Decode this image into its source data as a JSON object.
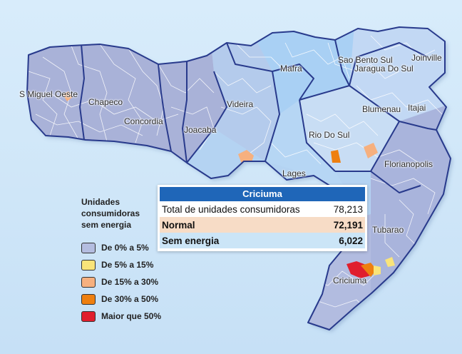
{
  "legend": {
    "title_lines": [
      "Unidades",
      "consumidoras",
      "sem energia"
    ],
    "items": [
      {
        "label": "De 0% a 5%",
        "color": "#b4bde0"
      },
      {
        "label": "De 5% a 15%",
        "color": "#f9e47a"
      },
      {
        "label": "De 15% a 30%",
        "color": "#f6b07f"
      },
      {
        "label": "De 30% a 50%",
        "color": "#ee7f10"
      },
      {
        "label": "Maior que 50%",
        "color": "#e01e2d"
      }
    ]
  },
  "cities": [
    "S Miguel Oeste",
    "Chapeco",
    "Concordia",
    "Joacaba",
    "Videira",
    "Mafra",
    "Sao Bento Sul",
    "Jaragua Do Sul",
    "Joinville",
    "Blumenau",
    "Itajai",
    "Rio Do Sul",
    "Lages",
    "Florianopolis",
    "Tubarao",
    "Criciuma"
  ],
  "popup": {
    "title": "Criciuma",
    "rows": [
      {
        "label": "Total de unidades consumidoras",
        "value": "78,213"
      },
      {
        "label": "Normal",
        "value": "72,191"
      },
      {
        "label": "Sem energia",
        "value": "6,022"
      }
    ]
  },
  "colors": {
    "west_region": "#a9b2d8",
    "center_region": "#b4d3f2",
    "north_region": "#a9d0f4",
    "east_region": "#c4dcf4",
    "south_region": "#b2bce0",
    "popup_header": "#1f66b8"
  }
}
